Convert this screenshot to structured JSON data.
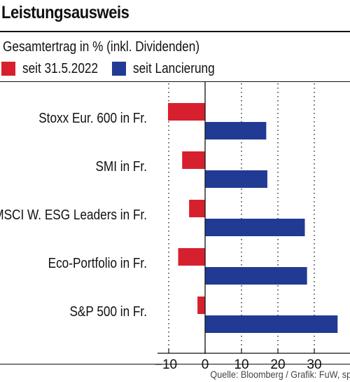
{
  "header": {
    "title": "Leistungsausweis",
    "subtitle": "Gesamtertrag in % (inkl. Dividenden)"
  },
  "legend": [
    {
      "label": "seit 31.5.2022",
      "color": "#d7202e"
    },
    {
      "label": "seit Lancierung",
      "color": "#213a93"
    }
  ],
  "footer": {
    "source": "Quelle: Bloomberg / Grafik: FuW, sp"
  },
  "chart_data": {
    "type": "bar",
    "orientation": "horizontal",
    "categories": [
      "Stoxx Eur. 600 in Fr.",
      "SMI in Fr.",
      "MSCI W. ESG Leaders in Fr.",
      "Eco-Portfolio in Fr.",
      "S&P 500 in Fr."
    ],
    "series": [
      {
        "name": "seit 31.5.2022",
        "color": "#d7202e",
        "values": [
          -10.2,
          -6.3,
          -4.4,
          -7.4,
          -2.1
        ]
      },
      {
        "name": "seit Lancierung",
        "color": "#213a93",
        "values": [
          16.8,
          17.1,
          27.4,
          28.0,
          36.4
        ]
      }
    ],
    "xlim": [
      -10,
      40
    ],
    "xticks": [
      -10,
      0,
      10,
      20,
      30
    ],
    "xtick_labels": [
      "−10",
      "0",
      "10",
      "20",
      "30"
    ],
    "grid": "vertical dotted",
    "title": "Leistungsausweis",
    "xlabel": "",
    "ylabel": "Gesamtertrag in % (inkl. Dividenden)"
  }
}
